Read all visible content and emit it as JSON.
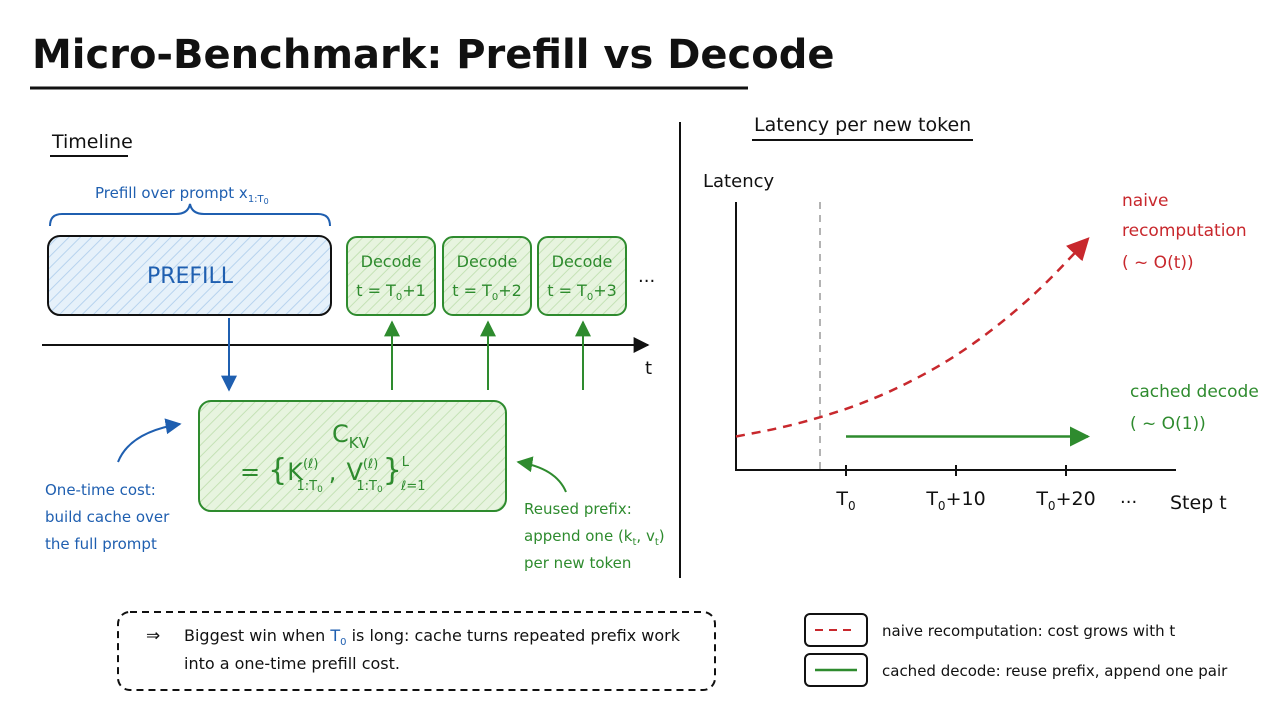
{
  "title": "Micro-Benchmark: Prefill vs Decode",
  "colors": {
    "ink": "#111111",
    "blue": "#1f5fb0",
    "green": "#2e8b2e",
    "red": "#c8282d",
    "blue_fill": "#e6f1fa",
    "green_fill": "#e7f4df",
    "gray_dash": "#9a9a9a"
  },
  "timeline": {
    "heading": "Timeline",
    "prefill_brace_label": "Prefill over prompt x",
    "prefill_brace_sub": "1:T",
    "prefill_brace_subsub": "0",
    "prefill_box_label": "PREFILL",
    "decode_boxes": [
      {
        "title": "Decode",
        "line": "t = T",
        "sub": "0",
        "plus": "+1"
      },
      {
        "title": "Decode",
        "line": "t = T",
        "sub": "0",
        "plus": "+2"
      },
      {
        "title": "Decode",
        "line": "t = T",
        "sub": "0",
        "plus": "+3"
      }
    ],
    "more": "...",
    "axis_label": "t",
    "cache_title": "C",
    "cache_title_sub": "KV",
    "cache_eq_prefix": "=",
    "cache_K": "K",
    "cache_V": "V",
    "cache_ell": "(ℓ)",
    "cache_sub": "1:T",
    "cache_sub0": "0",
    "cache_upper": "L",
    "cache_lower": "ℓ=1",
    "left_note": [
      "One-time cost:",
      "build cache over",
      "the full prompt"
    ],
    "right_note": [
      "Reused prefix:",
      "append one (k",
      "per new token"
    ],
    "right_note_k_sub": "t",
    "right_note_v": ", v",
    "right_note_v_sub": "t",
    "right_note_close": ")"
  },
  "chart_data": {
    "type": "line",
    "title": "Latency per new token",
    "ylabel": "Latency",
    "xlabel": "Step t",
    "x_ticks": [
      {
        "label": "T",
        "sub": "0",
        "suffix": ""
      },
      {
        "label": "T",
        "sub": "0",
        "suffix": "+10"
      },
      {
        "label": "T",
        "sub": "0",
        "suffix": "+20"
      }
    ],
    "x_more": "...",
    "series": [
      {
        "name": "naive recomputation",
        "label_lines": [
          "naive",
          "recomputation",
          "( ~ O(t))"
        ],
        "style": "dashed",
        "color": "#c8282d",
        "x": [
          0,
          4,
          8,
          12,
          16,
          20,
          24,
          28,
          32
        ],
        "y": [
          1.0,
          1.25,
          1.6,
          2.05,
          2.65,
          3.4,
          4.35,
          5.5,
          6.9
        ]
      },
      {
        "name": "cached decode",
        "label_lines": [
          "cached decode",
          "( ~ O(1))"
        ],
        "style": "solid",
        "color": "#2e8b2e",
        "x": [
          10,
          32
        ],
        "y": [
          1.0,
          1.0
        ]
      }
    ],
    "xlim": [
      0,
      40
    ],
    "ylim": [
      0,
      8
    ]
  },
  "callout": {
    "arrow": "⇒",
    "line1_a": "Biggest win when ",
    "line1_T": "T",
    "line1_T_sub": "0",
    "line1_b": " is long: cache turns repeated prefix work",
    "line2": "into a one-time prefill cost."
  },
  "legend": [
    {
      "style": "dashed",
      "color": "#c8282d",
      "text": "naive recomputation: cost grows with t"
    },
    {
      "style": "solid",
      "color": "#2e8b2e",
      "text": "cached decode: reuse prefix, append one pair"
    }
  ]
}
